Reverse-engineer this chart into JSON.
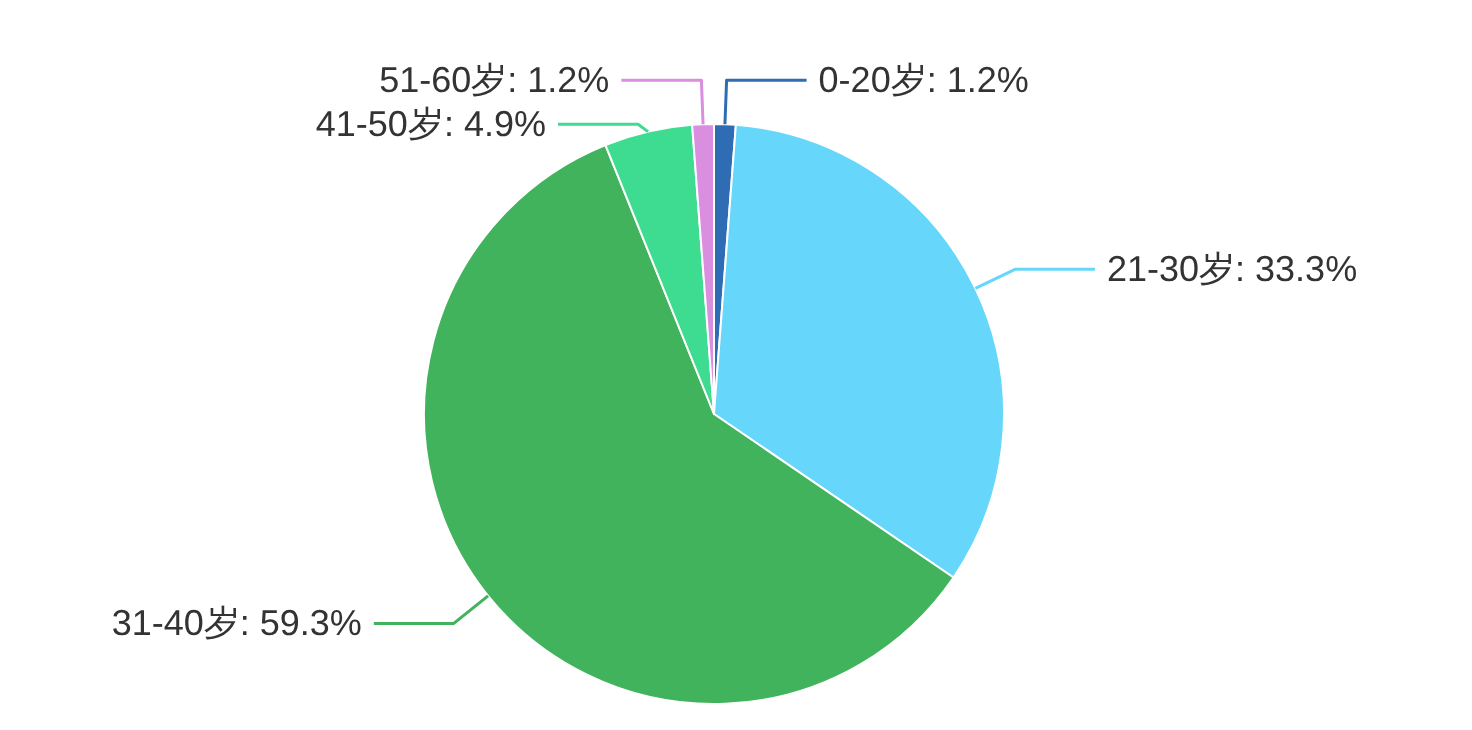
{
  "chart_data": {
    "type": "pie",
    "categories": [
      "0-20岁",
      "21-30岁",
      "31-40岁",
      "41-50岁",
      "51-60岁"
    ],
    "values": [
      1.2,
      33.3,
      59.3,
      4.9,
      1.2
    ],
    "value_labels": [
      "1.2%",
      "33.3%",
      "59.3%",
      "4.9%",
      "1.2%"
    ],
    "colors": [
      "#2e6db4",
      "#66d6fa",
      "#41b35c",
      "#3ddc90",
      "#d98ee0"
    ]
  }
}
